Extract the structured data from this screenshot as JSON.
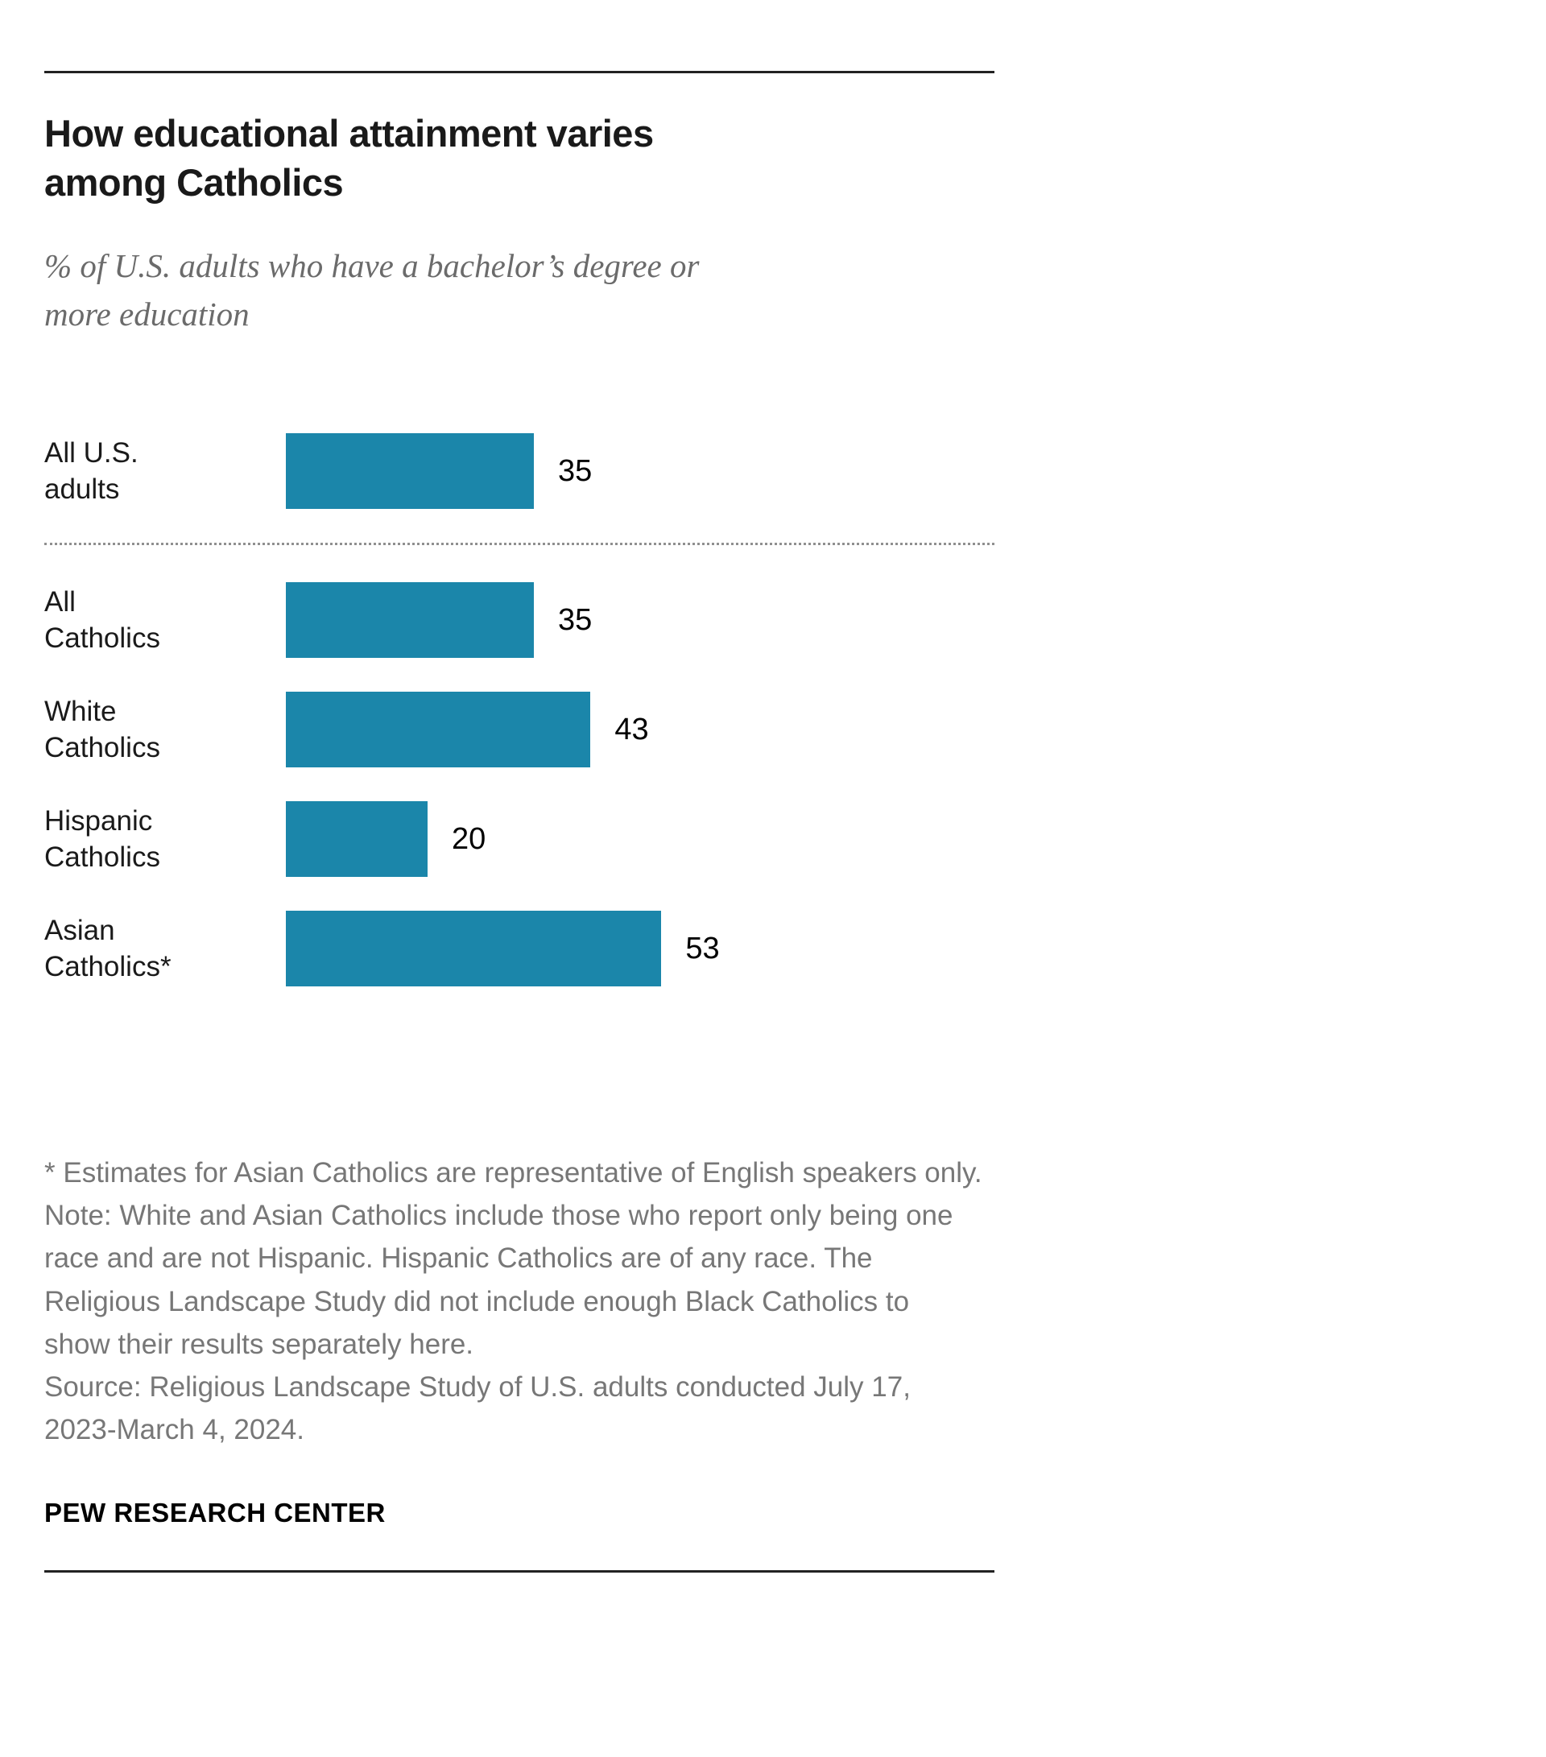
{
  "header": {
    "title": "How educational attainment varies\namong Catholics",
    "subtitle": "% of U.S. adults who have a bachelor’s degree or\nmore education"
  },
  "chart_data": {
    "type": "bar",
    "orientation": "horizontal",
    "title": "How educational attainment varies among Catholics",
    "subtitle": "% of U.S. adults who have a bachelor’s degree or more education",
    "categories": [
      "All U.S.\nadults",
      "All\nCatholics",
      "White\nCatholics",
      "Hispanic\nCatholics",
      "Asian\nCatholics*"
    ],
    "values": [
      35,
      35,
      43,
      20,
      53
    ],
    "value_labels": [
      "35",
      "35",
      "43",
      "20",
      "53"
    ],
    "xlim": [
      0,
      100
    ],
    "grid": false,
    "legend": "none",
    "bar_color": "#1b86aa",
    "separator_after_index": 0
  },
  "footnotes": {
    "asterisk": "* Estimates for Asian Catholics are representative of English speakers only.",
    "note": "Note: White and Asian Catholics include those who report only being one race and are not Hispanic. Hispanic Catholics are of any race. The Religious Landscape Study did not include enough Black Catholics to show their results separately here.",
    "source": "Source: Religious Landscape Study of U.S. adults conducted July 17, 2023-March 4, 2024."
  },
  "footer": {
    "brand": "PEW RESEARCH CENTER"
  }
}
